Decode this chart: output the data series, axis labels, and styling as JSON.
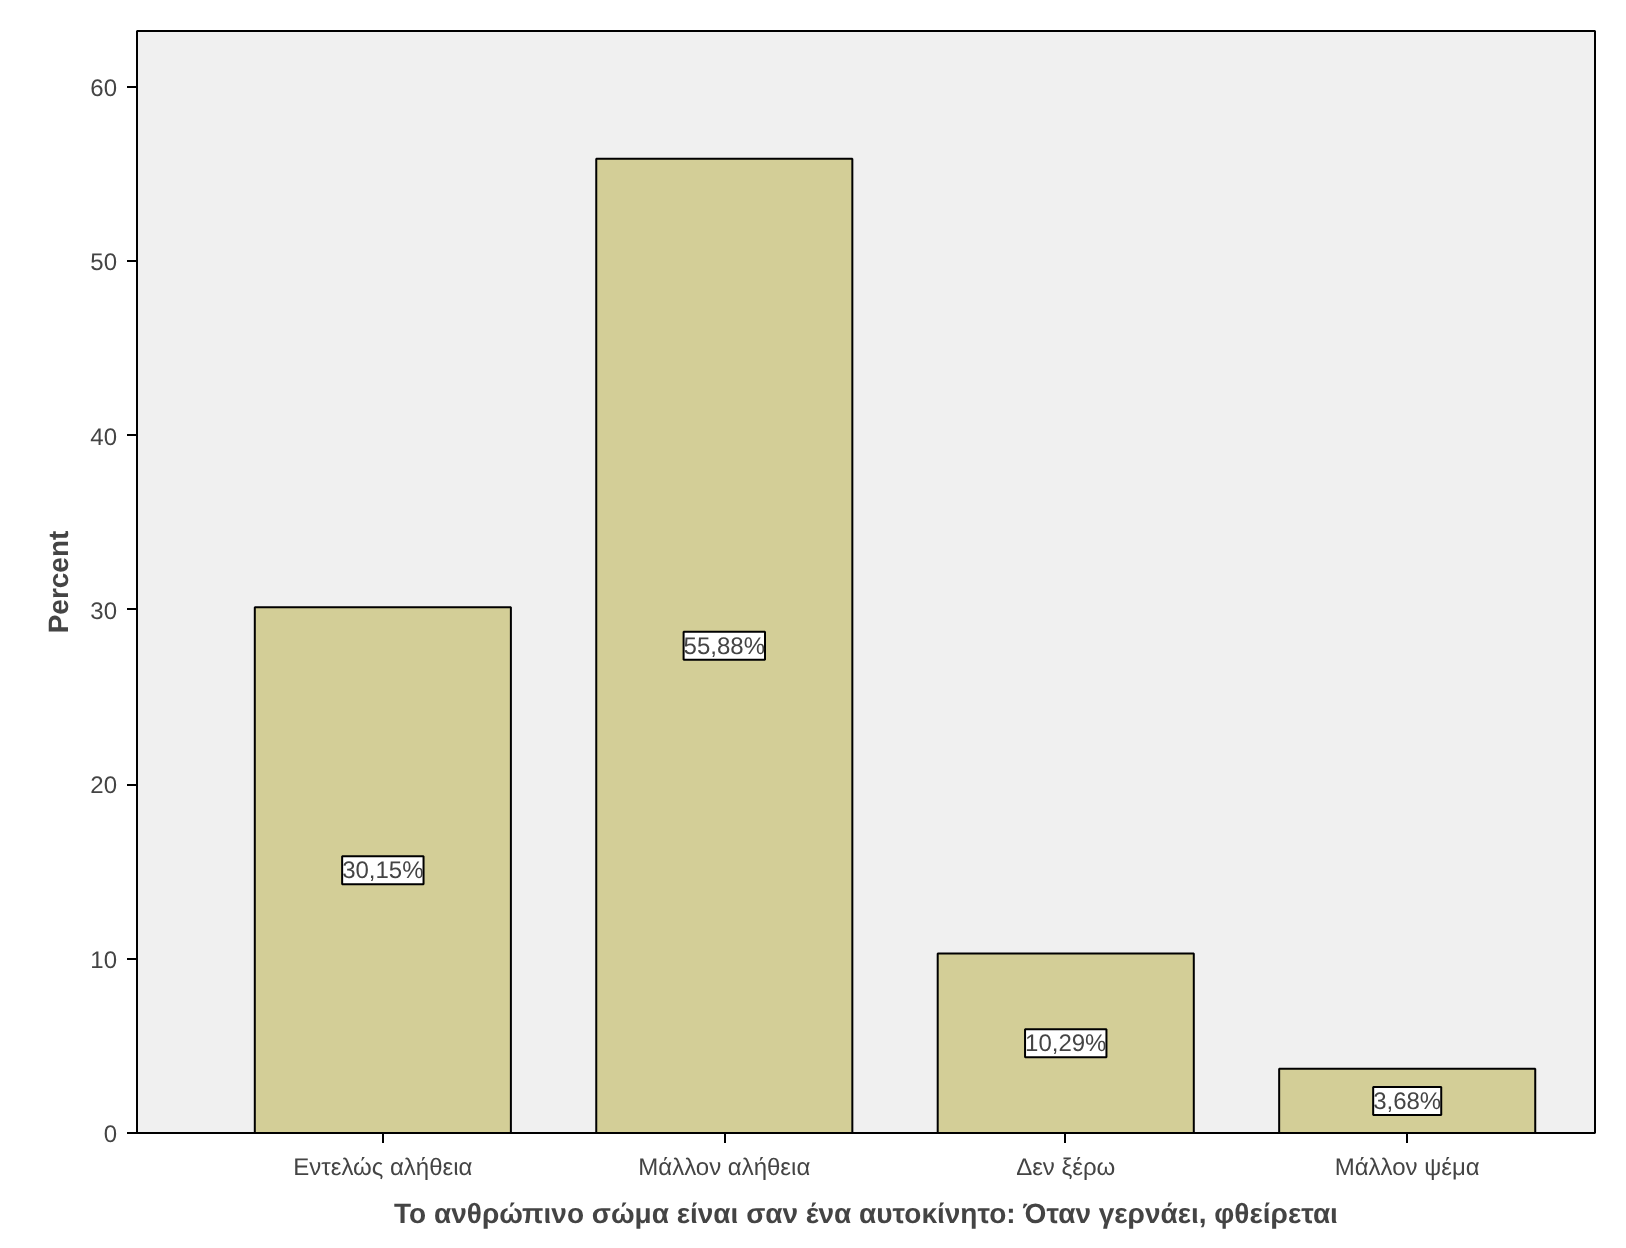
{
  "chart_data": {
    "type": "bar",
    "xlabel": "Το ανθρώπινο σώμα είναι σαν ένα αυτοκίνητο: Όταν γερνάει, φθείρεται",
    "ylabel": "Percent",
    "categories": [
      "Εντελώς αλήθεια",
      "Μάλλον αλήθεια",
      "Δεν ξέρω",
      "Μάλλον ψέμα"
    ],
    "values": [
      30.15,
      55.88,
      10.29,
      3.68
    ],
    "value_labels": [
      "30,15%",
      "55,88%",
      "10,29%",
      "3,68%"
    ],
    "color": "#d3ce97",
    "ylim": [
      0,
      63.2
    ],
    "yticks": [
      0,
      10,
      20,
      30,
      40,
      50,
      60
    ],
    "grid": false
  }
}
